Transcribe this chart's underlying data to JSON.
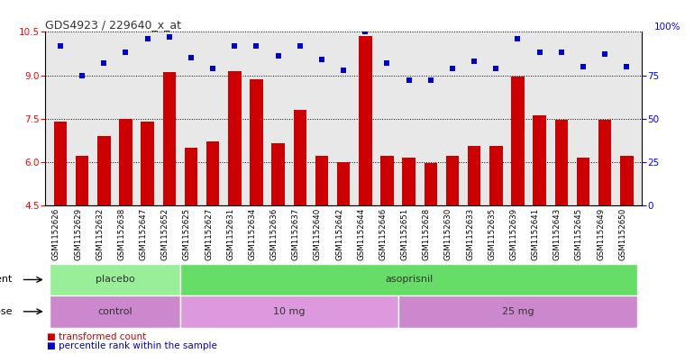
{
  "title": "GDS4923 / 229640_x_at",
  "samples": [
    "GSM1152626",
    "GSM1152629",
    "GSM1152632",
    "GSM1152638",
    "GSM1152647",
    "GSM1152652",
    "GSM1152625",
    "GSM1152627",
    "GSM1152631",
    "GSM1152634",
    "GSM1152636",
    "GSM1152637",
    "GSM1152640",
    "GSM1152642",
    "GSM1152644",
    "GSM1152646",
    "GSM1152651",
    "GSM1152628",
    "GSM1152630",
    "GSM1152633",
    "GSM1152635",
    "GSM1152639",
    "GSM1152641",
    "GSM1152643",
    "GSM1152645",
    "GSM1152649",
    "GSM1152650"
  ],
  "bar_values": [
    7.4,
    6.2,
    6.9,
    7.5,
    7.4,
    9.1,
    6.5,
    6.7,
    9.15,
    8.85,
    6.65,
    7.8,
    6.2,
    6.0,
    10.35,
    6.2,
    6.15,
    5.95,
    6.2,
    6.55,
    6.55,
    8.95,
    7.6,
    7.45,
    6.15,
    7.45,
    6.2
  ],
  "percentile_values": [
    92,
    75,
    82,
    88,
    96,
    97,
    85,
    79,
    92,
    92,
    86,
    92,
    84,
    78,
    100,
    82,
    72,
    72,
    79,
    83,
    79,
    96,
    88,
    88,
    80,
    87,
    80
  ],
  "ylim_left": [
    4.5,
    10.5
  ],
  "ylim_right": [
    0,
    100
  ],
  "yticks_left": [
    4.5,
    6.0,
    7.5,
    9.0,
    10.5
  ],
  "yticks_right": [
    0,
    25,
    50,
    75,
    100
  ],
  "bar_color": "#cc0000",
  "dot_color": "#0000cc",
  "bg_color": "#d8d8d8",
  "plot_bg": "#e8e8e8",
  "agent_groups": [
    {
      "label": "placebo",
      "start": 0,
      "end": 6,
      "color": "#99ee99"
    },
    {
      "label": "asoprisnil",
      "start": 6,
      "end": 27,
      "color": "#66dd66"
    }
  ],
  "dose_groups": [
    {
      "label": "control",
      "start": 0,
      "end": 6,
      "color": "#cc88cc"
    },
    {
      "label": "10 mg",
      "start": 6,
      "end": 16,
      "color": "#dd99dd"
    },
    {
      "label": "25 mg",
      "start": 16,
      "end": 27,
      "color": "#cc88cc"
    }
  ],
  "legend_bar_label": "transformed count",
  "legend_dot_label": "percentile rank within the sample",
  "bar_width": 0.6,
  "n_samples": 27
}
